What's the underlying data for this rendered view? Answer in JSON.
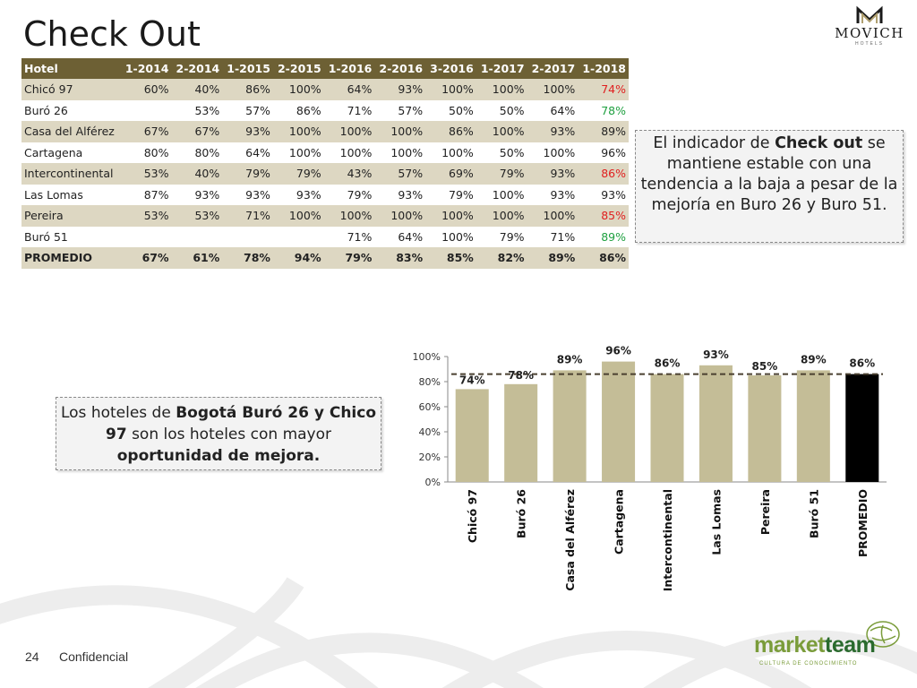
{
  "slide": {
    "title": "Check Out",
    "page_number": "24",
    "footer": "Confidencial"
  },
  "logo": {
    "name": "MOVICH",
    "sub": "HOTELS"
  },
  "brand": {
    "name_part1": "market",
    "name_part2": "team",
    "tagline": "CULTURA DE CONOCIMIENTO",
    "color1": "#7a9c3a",
    "color2": "#2a6a2e"
  },
  "table": {
    "headers": [
      "Hotel",
      "1-2014",
      "2-2014",
      "1-2015",
      "2-2015",
      "1-2016",
      "2-2016",
      "3-2016",
      "1-2017",
      "2-2017",
      "1-2018"
    ],
    "rows": [
      {
        "cells": [
          "Chicó 97",
          "60%",
          "40%",
          "86%",
          "100%",
          "64%",
          "93%",
          "100%",
          "100%",
          "100%",
          "74%"
        ],
        "last_color": "red"
      },
      {
        "cells": [
          "Buró 26",
          "",
          "53%",
          "57%",
          "86%",
          "71%",
          "57%",
          "50%",
          "50%",
          "64%",
          "78%"
        ],
        "last_color": "green"
      },
      {
        "cells": [
          "Casa del Alférez",
          "67%",
          "67%",
          "93%",
          "100%",
          "100%",
          "100%",
          "86%",
          "100%",
          "93%",
          "89%"
        ],
        "last_color": ""
      },
      {
        "cells": [
          "Cartagena",
          "80%",
          "80%",
          "64%",
          "100%",
          "100%",
          "100%",
          "100%",
          "50%",
          "100%",
          "96%"
        ],
        "last_color": ""
      },
      {
        "cells": [
          "Intercontinental",
          "53%",
          "40%",
          "79%",
          "79%",
          "43%",
          "57%",
          "69%",
          "79%",
          "93%",
          "86%"
        ],
        "last_color": "red"
      },
      {
        "cells": [
          "Las Lomas",
          "87%",
          "93%",
          "93%",
          "93%",
          "79%",
          "93%",
          "79%",
          "100%",
          "93%",
          "93%"
        ],
        "last_color": ""
      },
      {
        "cells": [
          "Pereira",
          "53%",
          "53%",
          "71%",
          "100%",
          "100%",
          "100%",
          "100%",
          "100%",
          "100%",
          "85%"
        ],
        "last_color": "red"
      },
      {
        "cells": [
          "Buró 51",
          "",
          "",
          "",
          "",
          "71%",
          "64%",
          "100%",
          "79%",
          "71%",
          "89%"
        ],
        "last_color": "green"
      }
    ],
    "average": {
      "cells": [
        "PROMEDIO",
        "67%",
        "61%",
        "78%",
        "94%",
        "79%",
        "83%",
        "85%",
        "82%",
        "89%",
        "86%"
      ]
    }
  },
  "callouts": {
    "right": {
      "part1": "El indicador de ",
      "bold1": "Check out",
      "part2": " se mantiene estable con una tendencia a la baja a pesar de la mejoría en Buro 26 y Buro 51."
    },
    "left": {
      "part1": "Los hoteles de ",
      "bold1": "Bogotá Buró 26 y Chico 97",
      "part2": " son los hoteles con mayor ",
      "bold2": "oportunidad de mejora."
    }
  },
  "chart_data": {
    "type": "bar",
    "categories": [
      "Chicó 97",
      "Buró 26",
      "Casa del Alférez",
      "Cartagena",
      "Intercontinental",
      "Las Lomas",
      "Pereira",
      "Buró 51",
      "PROMEDIO"
    ],
    "values": [
      74,
      78,
      89,
      96,
      86,
      93,
      85,
      89,
      86
    ],
    "data_labels": [
      "74%",
      "78%",
      "89%",
      "96%",
      "86%",
      "93%",
      "85%",
      "89%",
      "86%"
    ],
    "reference_line": 86,
    "ylim": [
      0,
      100
    ],
    "yticks": [
      "0%",
      "20%",
      "40%",
      "60%",
      "80%",
      "100%"
    ],
    "bar_color": "#c4bd97",
    "highlight_color": "#000000",
    "reference_color": "#4a4030"
  }
}
